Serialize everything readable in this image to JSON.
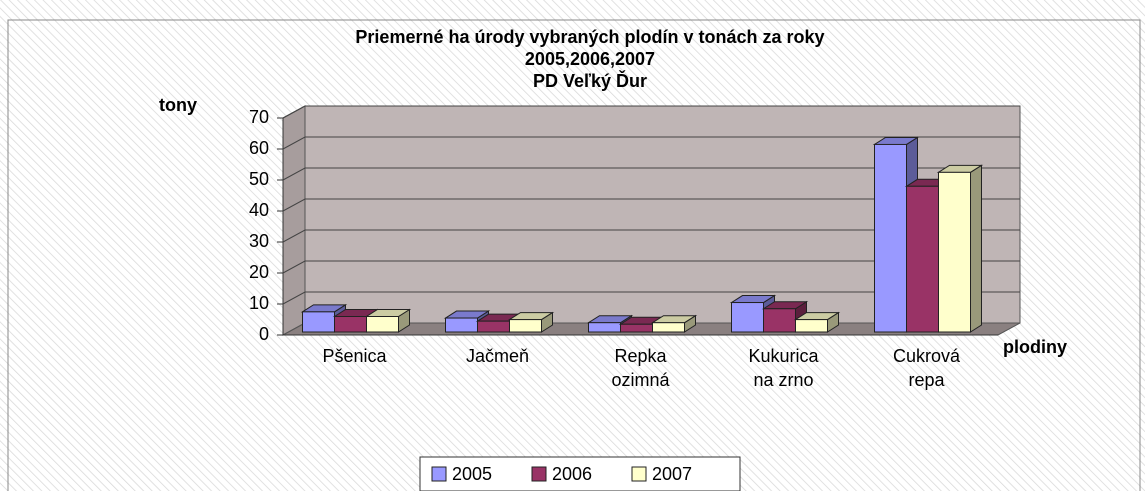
{
  "chart_data": {
    "type": "bar3d",
    "title": [
      "Priemerné ha úrody vybraných plodín v tonách za roky",
      "2005,2006,2007",
      "PD Veľký Ďur"
    ],
    "y_label": "tony",
    "x_label": "plodiny",
    "categories": [
      "Pšenica",
      "Jačmeň",
      "Repka\nozimná",
      "Kukurica\nna zrno",
      "Cukrová\nrepa"
    ],
    "series": [
      {
        "name": "2005",
        "color": "#9999ff",
        "values": [
          6.5,
          4.5,
          3,
          9.5,
          60.5
        ]
      },
      {
        "name": "2006",
        "color": "#993366",
        "values": [
          5,
          3.5,
          2.5,
          7.5,
          47
        ]
      },
      {
        "name": "2007",
        "color": "#ffffcc",
        "values": [
          5,
          4,
          3,
          4,
          51.5
        ]
      }
    ],
    "ylim": [
      0,
      70
    ],
    "yticks": [
      0,
      10,
      20,
      30,
      40,
      50,
      60,
      70
    ],
    "grid": true,
    "legend": "bottom"
  }
}
